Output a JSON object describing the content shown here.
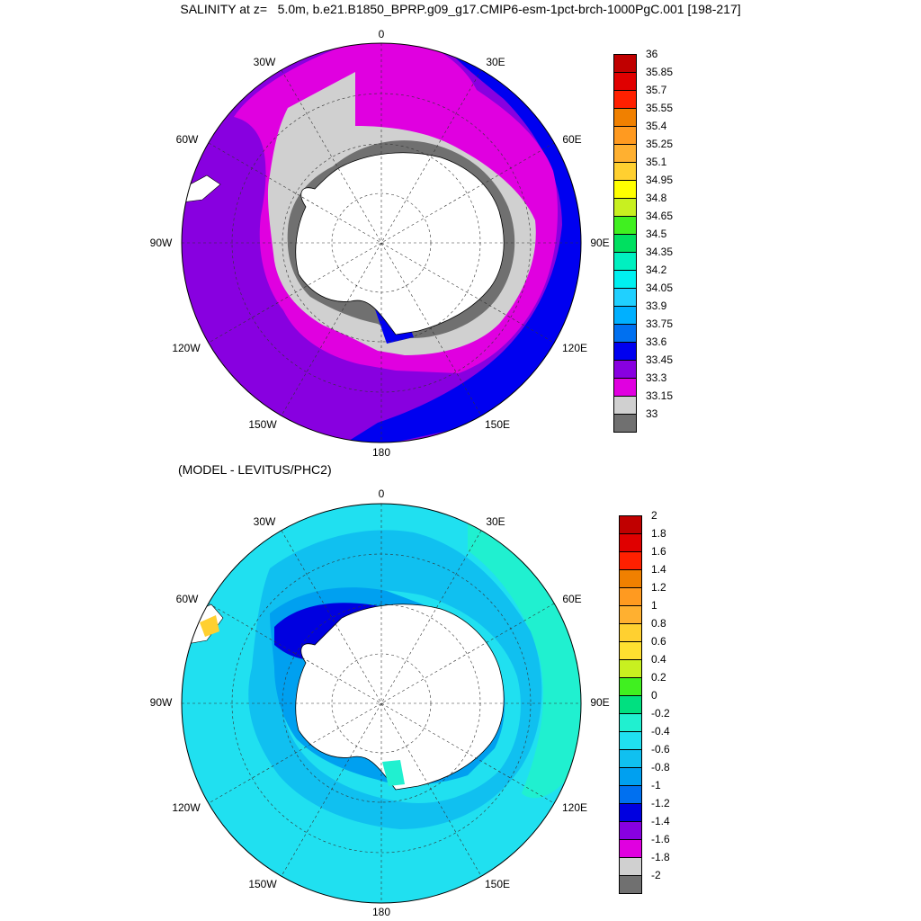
{
  "title": "SALINITY at z=   5.0m, b.e21.B1850_BPRP.g09_g17.CMIP6-esm-1pct-brch-1000PgC.001 [198-217]",
  "panels": [
    {
      "name": "salinity",
      "subtitle": "",
      "lon_labels": [
        "0",
        "30E",
        "60E",
        "90E",
        "120E",
        "150E",
        "180",
        "150W",
        "120W",
        "90W",
        "60W",
        "30W"
      ],
      "colorbar": {
        "ticks": [
          "36",
          "35.85",
          "35.7",
          "35.55",
          "35.4",
          "35.25",
          "35.1",
          "34.95",
          "34.8",
          "34.65",
          "34.5",
          "34.35",
          "34.2",
          "34.05",
          "33.9",
          "33.75",
          "33.6",
          "33.45",
          "33.3",
          "33.15",
          "33"
        ],
        "colors": [
          "#c00000",
          "#e00000",
          "#ff2000",
          "#f08000",
          "#ff9a20",
          "#ffb030",
          "#ffd030",
          "#ffff00",
          "#c8f020",
          "#40f020",
          "#00e060",
          "#00f0c0",
          "#00f0f0",
          "#20d0ff",
          "#00b0ff",
          "#0070f0",
          "#0000f0",
          "#8800e0",
          "#e000e0",
          "#d0d0d0",
          "#707070"
        ]
      }
    },
    {
      "name": "difference",
      "subtitle": "(MODEL - LEVITUS/PHC2)",
      "lon_labels": [
        "0",
        "30E",
        "60E",
        "90E",
        "120E",
        "150E",
        "180",
        "150W",
        "120W",
        "90W",
        "60W",
        "30W"
      ],
      "colorbar": {
        "ticks": [
          "2",
          "1.8",
          "1.6",
          "1.4",
          "1.2",
          "1",
          "0.8",
          "0.6",
          "0.4",
          "0.2",
          "0",
          "-0.2",
          "-0.4",
          "-0.6",
          "-0.8",
          "-1",
          "-1.2",
          "-1.4",
          "-1.6",
          "-1.8",
          "-2"
        ],
        "colors": [
          "#c00000",
          "#e00000",
          "#ff2000",
          "#f08000",
          "#ff9a20",
          "#ffb030",
          "#ffd030",
          "#ffe030",
          "#c8f020",
          "#40f020",
          "#00e080",
          "#20f0d0",
          "#20e0f0",
          "#10c0f0",
          "#00a0f0",
          "#0070f0",
          "#0000e0",
          "#8800e0",
          "#e000e0",
          "#d0d0d0",
          "#707070"
        ]
      }
    }
  ]
}
